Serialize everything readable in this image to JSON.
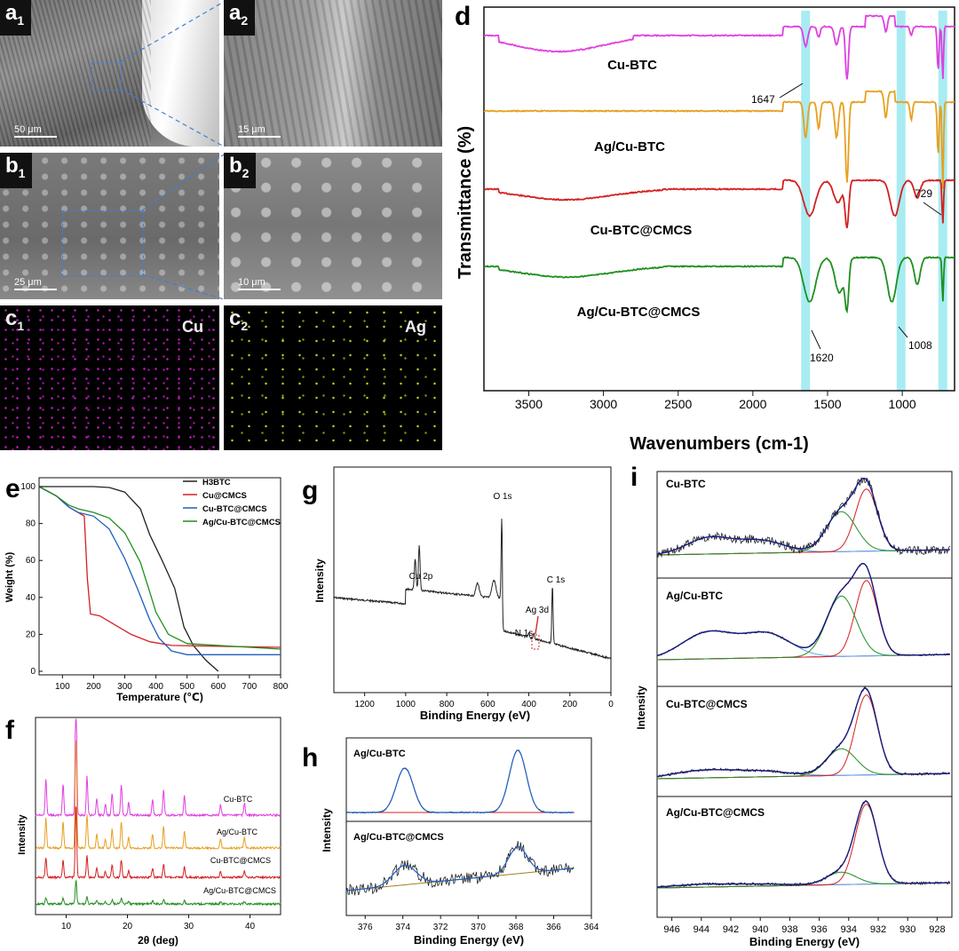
{
  "sem": {
    "a1": {
      "tag": "a",
      "sub": "1",
      "scale": "50 μm"
    },
    "a2": {
      "tag": "a",
      "sub": "2",
      "scale": "15 μm"
    },
    "b1": {
      "tag": "b",
      "sub": "1",
      "scale": "25 μm"
    },
    "b2": {
      "tag": "b",
      "sub": "2",
      "scale": "10 μm"
    },
    "c1": {
      "tag": "c",
      "sub": "1",
      "element": "Cu"
    },
    "c2": {
      "tag": "c",
      "sub": "2",
      "element": "Ag"
    }
  },
  "colors": {
    "magenta": "#e040e0",
    "orange": "#e8a020",
    "red": "#d42020",
    "green": "#1f8f1f",
    "blue": "#1f5fbf",
    "black": "#222222",
    "cyan": "#a8ecf2",
    "navy": "#1a1a80"
  },
  "chart_data": [
    {
      "id": "d",
      "type": "line",
      "label": "d",
      "title": "",
      "xlabel": "Wavenumbers (cm-1)",
      "ylabel": "Transmittance (%)",
      "xlim": [
        3800,
        650
      ],
      "xticks": [
        "3500",
        "3000",
        "2500",
        "2000",
        "1500",
        "1000"
      ],
      "series_labels": [
        "Cu-BTC",
        "Ag/Cu-BTC",
        "Cu-BTC@CMCS",
        "Ag/Cu-BTC@CMCS"
      ],
      "highlight_bands": [
        1647,
        1008,
        729
      ],
      "annotations": [
        "1647",
        "729",
        "1620",
        "1008"
      ]
    },
    {
      "id": "e",
      "type": "line",
      "label": "e",
      "xlabel": "Temperature (℃)",
      "ylabel": "Weight (%)",
      "xlim": [
        25,
        800
      ],
      "ylim": [
        0,
        100
      ],
      "xticks": [
        "100",
        "200",
        "300",
        "400",
        "500",
        "600",
        "700",
        "800"
      ],
      "yticks": [
        "0",
        "20",
        "40",
        "60",
        "80",
        "100"
      ],
      "legend": [
        "H3BTC",
        "Cu@CMCS",
        "Cu-BTC@CMCS",
        "Ag/Cu-BTC@CMCS"
      ],
      "series": [
        {
          "name": "H3BTC",
          "x": [
            25,
            100,
            200,
            250,
            300,
            350,
            380,
            420,
            460,
            490,
            520,
            560,
            600
          ],
          "values": [
            100,
            100,
            100,
            99.5,
            97,
            88,
            74,
            60,
            45,
            24,
            14,
            6,
            0
          ]
        },
        {
          "name": "Cu@CMCS",
          "x": [
            25,
            80,
            120,
            150,
            170,
            180,
            190,
            220,
            260,
            320,
            380,
            450,
            800
          ],
          "values": [
            100,
            95,
            89,
            86,
            84,
            50,
            31,
            30,
            26,
            20,
            16,
            14,
            13
          ]
        },
        {
          "name": "Cu-BTC@CMCS",
          "x": [
            25,
            80,
            120,
            150,
            200,
            250,
            300,
            340,
            380,
            410,
            450,
            500,
            800
          ],
          "values": [
            100,
            95,
            89,
            86,
            84,
            77,
            61,
            45,
            28,
            18,
            11,
            9,
            9
          ]
        },
        {
          "name": "Ag/Cu-BTC@CMCS",
          "x": [
            25,
            80,
            120,
            150,
            200,
            250,
            300,
            350,
            380,
            400,
            440,
            500,
            800
          ],
          "values": [
            100,
            95,
            90,
            88,
            86,
            83,
            75,
            59,
            43,
            32,
            20,
            15,
            12
          ]
        }
      ]
    },
    {
      "id": "f",
      "type": "line",
      "label": "f",
      "xlabel": "2θ (deg)",
      "ylabel": "Intensity",
      "xlim": [
        5,
        45
      ],
      "xticks": [
        "10",
        "20",
        "30",
        "40"
      ],
      "series_labels": [
        "Cu-BTC",
        "Ag/Cu-BTC",
        "Cu-BTC@CMCS",
        "Ag/Cu-BTC@CMCS"
      ]
    },
    {
      "id": "g",
      "type": "line",
      "label": "g",
      "xlabel": "Binding Energy (eV)",
      "ylabel": "Intensity",
      "xlim": [
        1350,
        0
      ],
      "xticks": [
        "1200",
        "1000",
        "800",
        "600",
        "400",
        "200",
        "0"
      ],
      "annotations": [
        "O 1s",
        "Cu 2p",
        "C 1s",
        "Ag 3d",
        "N 1s"
      ]
    },
    {
      "id": "h",
      "type": "line",
      "label": "h",
      "xlabel": "Binding Energy (eV)",
      "ylabel": "Intensity",
      "xlim": [
        377,
        364
      ],
      "xticks": [
        "376",
        "374",
        "372",
        "370",
        "368",
        "366",
        "364"
      ],
      "series_labels": [
        "Ag/Cu-BTC",
        "Ag/Cu-BTC@CMCS"
      ]
    },
    {
      "id": "i",
      "type": "line",
      "label": "i",
      "xlabel": "Binding Energy (eV)",
      "ylabel": "Intensity",
      "xlim": [
        947,
        927
      ],
      "xticks": [
        "946",
        "944",
        "942",
        "940",
        "938",
        "936",
        "934",
        "932",
        "930",
        "928"
      ],
      "series_labels": [
        "Cu-BTC",
        "Ag/Cu-BTC",
        "Cu-BTC@CMCS",
        "Ag/Cu-BTC@CMCS"
      ]
    }
  ]
}
